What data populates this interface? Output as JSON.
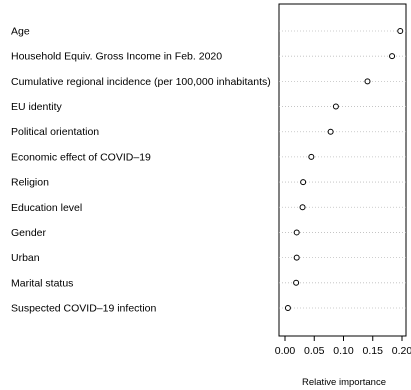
{
  "chart_data": {
    "type": "scatter",
    "subtype": "dotchart",
    "title": "",
    "xlabel": "Relative importance",
    "ylabel": "",
    "xlim": [
      0,
      0.2
    ],
    "xticks": [
      "0.00",
      "0.05",
      "0.10",
      "0.15",
      "0.20"
    ],
    "grid": "dotted horizontal guide lines",
    "categories": [
      "Age",
      "Household Equiv. Gross Income in Feb. 2020",
      "Cumulative regional incidence (per 100,000 inhabitants)",
      "EU identity",
      "Political orientation",
      "Economic effect of COVID–19",
      "Religion",
      "Education level",
      "Gender",
      "Urban",
      "Marital status",
      "Suspected COVID–19 infection"
    ],
    "values": [
      0.197,
      0.183,
      0.141,
      0.087,
      0.078,
      0.045,
      0.031,
      0.03,
      0.02,
      0.02,
      0.019,
      0.005
    ]
  }
}
